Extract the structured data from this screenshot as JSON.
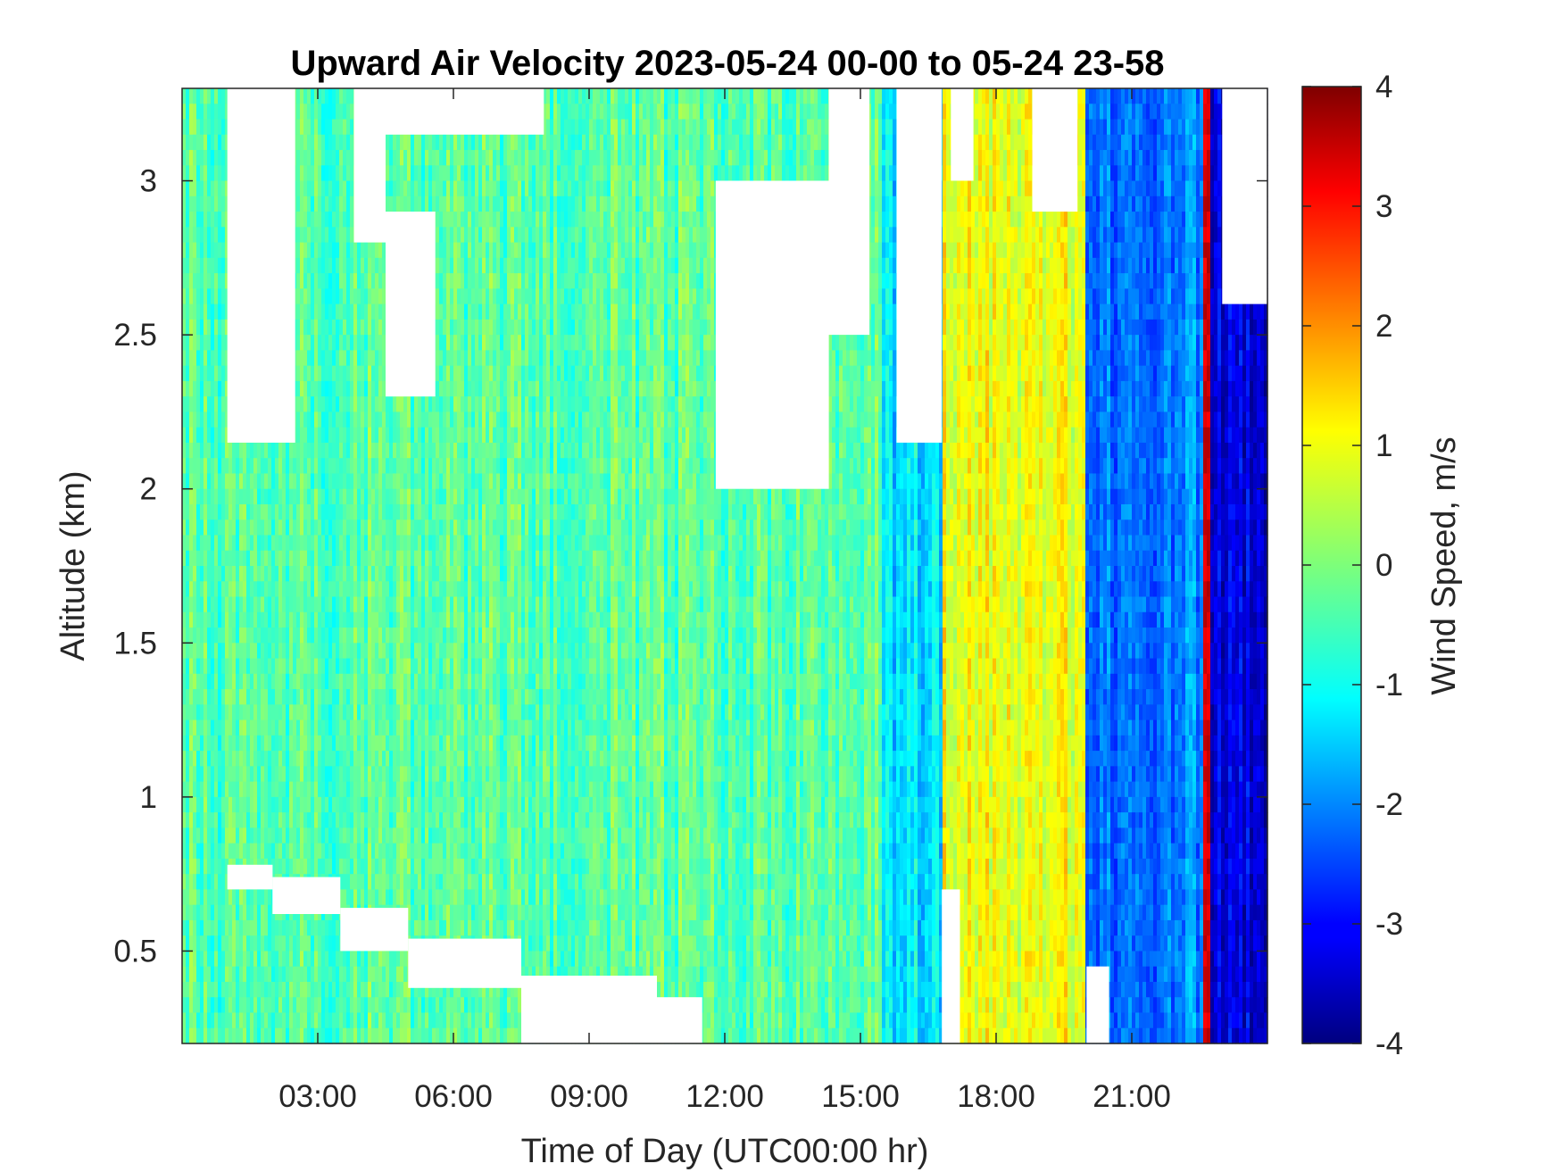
{
  "chart_data": {
    "type": "heatmap",
    "title": "Upward Air Velocity 2023-05-24 00-00 to 05-24 23-58",
    "xlabel": "Time of Day (UTC00:00 hr)",
    "ylabel": "Altitude (km)",
    "xlim_hours": [
      0,
      24
    ],
    "ylim_km": [
      0.2,
      3.3
    ],
    "x_ticks": [
      {
        "value": 3,
        "label": "03:00"
      },
      {
        "value": 6,
        "label": "06:00"
      },
      {
        "value": 9,
        "label": "09:00"
      },
      {
        "value": 12,
        "label": "12:00"
      },
      {
        "value": 15,
        "label": "15:00"
      },
      {
        "value": 18,
        "label": "18:00"
      },
      {
        "value": 21,
        "label": "21:00"
      }
    ],
    "y_ticks": [
      {
        "value": 0.5,
        "label": "0.5"
      },
      {
        "value": 1,
        "label": "1"
      },
      {
        "value": 1.5,
        "label": "1.5"
      },
      {
        "value": 2,
        "label": "2"
      },
      {
        "value": 2.5,
        "label": "2.5"
      },
      {
        "value": 3,
        "label": "3"
      }
    ],
    "colorbar": {
      "label": "Wind Speed, m/s",
      "range": [
        -4,
        4
      ],
      "colormap": "jet",
      "ticks": [
        {
          "value": 4,
          "label": "4"
        },
        {
          "value": 3,
          "label": "3"
        },
        {
          "value": 2,
          "label": "2"
        },
        {
          "value": 1,
          "label": "1"
        },
        {
          "value": 0,
          "label": "0"
        },
        {
          "value": -1,
          "label": "-1"
        },
        {
          "value": -2,
          "label": "-2"
        },
        {
          "value": -3,
          "label": "-3"
        },
        {
          "value": -4,
          "label": "-4"
        }
      ]
    },
    "velocity_regimes": [
      {
        "hours": [
          0,
          15.5
        ],
        "typical_ms": -0.3
      },
      {
        "hours": [
          15.5,
          16.8
        ],
        "typical_ms": -1.2
      },
      {
        "hours": [
          16.8,
          20.0
        ],
        "typical_ms": 0.9
      },
      {
        "hours": [
          20.0,
          22.6
        ],
        "typical_ms": -2.0
      },
      {
        "hours": [
          22.6,
          22.75
        ],
        "typical_ms": 3.5
      },
      {
        "hours": [
          22.75,
          24
        ],
        "typical_ms": -3.3
      }
    ],
    "no_data_regions": [
      {
        "hours": [
          1.0,
          2.5
        ],
        "km": [
          2.15,
          3.3
        ]
      },
      {
        "hours": [
          3.8,
          4.5
        ],
        "km": [
          2.8,
          3.3
        ]
      },
      {
        "hours": [
          4.5,
          5.6
        ],
        "km": [
          2.3,
          2.9
        ]
      },
      {
        "hours": [
          4.5,
          8.0
        ],
        "km": [
          3.15,
          3.3
        ]
      },
      {
        "hours": [
          11.8,
          14.3
        ],
        "km": [
          2.0,
          3.0
        ]
      },
      {
        "hours": [
          14.3,
          15.2
        ],
        "km": [
          2.5,
          3.3
        ]
      },
      {
        "hours": [
          15.8,
          16.8
        ],
        "km": [
          2.15,
          3.3
        ]
      },
      {
        "hours": [
          17.0,
          17.5
        ],
        "km": [
          3.0,
          3.3
        ]
      },
      {
        "hours": [
          18.8,
          19.8
        ],
        "km": [
          2.9,
          3.3
        ]
      },
      {
        "hours": [
          23.0,
          24.0
        ],
        "km": [
          2.6,
          3.3
        ]
      },
      {
        "hours": [
          1.0,
          2.0
        ],
        "km": [
          0.7,
          0.78
        ]
      },
      {
        "hours": [
          2.0,
          3.5
        ],
        "km": [
          0.62,
          0.74
        ]
      },
      {
        "hours": [
          3.5,
          5.0
        ],
        "km": [
          0.5,
          0.64
        ]
      },
      {
        "hours": [
          5.0,
          7.5
        ],
        "km": [
          0.38,
          0.54
        ]
      },
      {
        "hours": [
          7.5,
          10.5
        ],
        "km": [
          0.2,
          0.42
        ]
      },
      {
        "hours": [
          10.5,
          11.5
        ],
        "km": [
          0.2,
          0.35
        ]
      },
      {
        "hours": [
          16.8,
          17.2
        ],
        "km": [
          0.2,
          0.7
        ]
      },
      {
        "hours": [
          20.0,
          20.5
        ],
        "km": [
          0.2,
          0.45
        ]
      }
    ]
  }
}
